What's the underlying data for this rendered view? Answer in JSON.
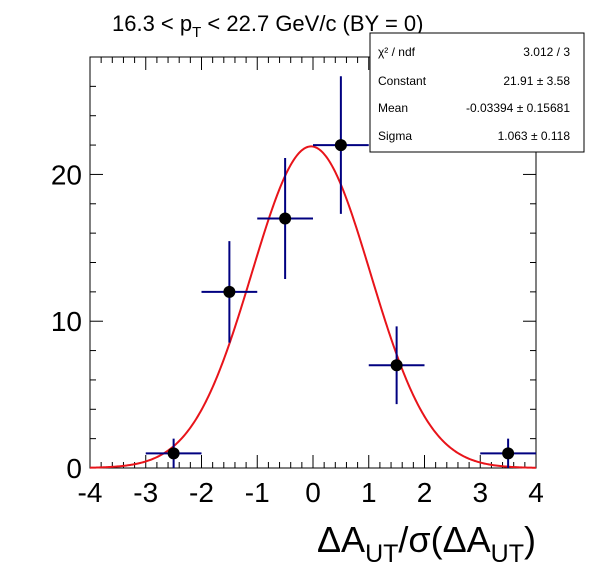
{
  "chart_data": {
    "type": "scatter",
    "title_parts": {
      "main": "16.3 < p",
      "sub": "T",
      "rest": " < 22.7 GeV/c (BY = 0)"
    },
    "xlabel_parts": {
      "a": "ΔA",
      "sub1": "UT",
      "b": "/σ(ΔA",
      "sub2": "UT",
      "c": ")"
    },
    "ylabel": "",
    "xlim": [
      -4,
      4
    ],
    "ylim": [
      0,
      28
    ],
    "x_ticks": [
      "-4",
      "-3",
      "-2",
      "-1",
      "0",
      "1",
      "2",
      "3",
      "4"
    ],
    "y_ticks": [
      "0",
      "10",
      "20"
    ],
    "series": [
      {
        "points": [
          {
            "x": -2.5,
            "y": 1,
            "xerr": 0.5,
            "yerr": 1.0
          },
          {
            "x": -1.5,
            "y": 12,
            "xerr": 0.5,
            "yerr": 3.46
          },
          {
            "x": -0.5,
            "y": 17,
            "xerr": 0.5,
            "yerr": 4.12
          },
          {
            "x": 0.5,
            "y": 22,
            "xerr": 0.5,
            "yerr": 4.69
          },
          {
            "x": 1.5,
            "y": 7,
            "xerr": 0.5,
            "yerr": 2.65
          },
          {
            "x": 3.5,
            "y": 1,
            "xerr": 0.5,
            "yerr": 1.0
          }
        ],
        "color": "#000080"
      }
    ],
    "fit": {
      "function": "gaus",
      "constant": 21.91,
      "mean": -0.03394,
      "sigma": 1.063,
      "color": "#e8141a"
    },
    "stats_box": {
      "rows": [
        {
          "label": "χ² / ndf",
          "value": "3.012 / 3"
        },
        {
          "label": "Constant",
          "value": "21.91 ± 3.58"
        },
        {
          "label": "Mean",
          "value": "-0.03394  ± 0.15681"
        },
        {
          "label": "Sigma",
          "value": "1.063  ± 0.118"
        }
      ]
    },
    "grid": false
  }
}
